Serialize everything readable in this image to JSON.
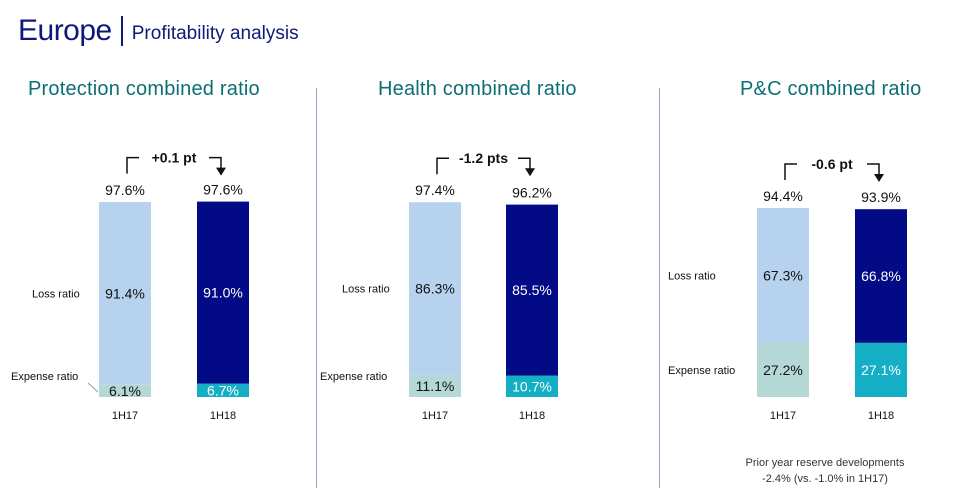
{
  "header": {
    "title": "Europe",
    "subtitle": "Profitability analysis"
  },
  "chart_data": [
    {
      "type": "bar",
      "title": "Protection combined ratio",
      "categories": [
        "1H17",
        "1H18"
      ],
      "totals": [
        "97.6%",
        "97.6%"
      ],
      "change": "+0.1 pt",
      "series": [
        {
          "name": "Expense ratio",
          "values": [
            6.1,
            6.7
          ],
          "labels": [
            "6.1%",
            "6.7%"
          ]
        },
        {
          "name": "Loss ratio",
          "values": [
            91.4,
            91.0
          ],
          "labels": [
            "91.4%",
            "91.0%"
          ]
        }
      ]
    },
    {
      "type": "bar",
      "title": "Health combined ratio",
      "categories": [
        "1H17",
        "1H18"
      ],
      "totals": [
        "97.4%",
        "96.2%"
      ],
      "change": "-1.2 pts",
      "series": [
        {
          "name": "Expense ratio",
          "values": [
            11.1,
            10.7
          ],
          "labels": [
            "11.1%",
            "10.7%"
          ]
        },
        {
          "name": "Loss ratio",
          "values": [
            86.3,
            85.5
          ],
          "labels": [
            "86.3%",
            "85.5%"
          ]
        }
      ]
    },
    {
      "type": "bar",
      "title": "P&C combined ratio",
      "categories": [
        "1H17",
        "1H18"
      ],
      "totals": [
        "94.4%",
        "93.9%"
      ],
      "change": "-0.6 pt",
      "series": [
        {
          "name": "Expense ratio",
          "values": [
            27.2,
            27.1
          ],
          "labels": [
            "27.2%",
            "27.1%"
          ]
        },
        {
          "name": "Loss ratio",
          "values": [
            67.3,
            66.8
          ],
          "labels": [
            "67.3%",
            "66.8%"
          ]
        }
      ]
    }
  ],
  "colors": {
    "loss_1H17": "#b7d2ee",
    "loss_1H18": "#020a85",
    "expense_1H17": "#b4d8d6",
    "expense_1H18": "#14aec5",
    "title": "#0c6f73"
  },
  "footnote": {
    "line1": "Prior year reserve developments",
    "line2": "-2.4% (vs. -1.0% in 1H17)"
  }
}
